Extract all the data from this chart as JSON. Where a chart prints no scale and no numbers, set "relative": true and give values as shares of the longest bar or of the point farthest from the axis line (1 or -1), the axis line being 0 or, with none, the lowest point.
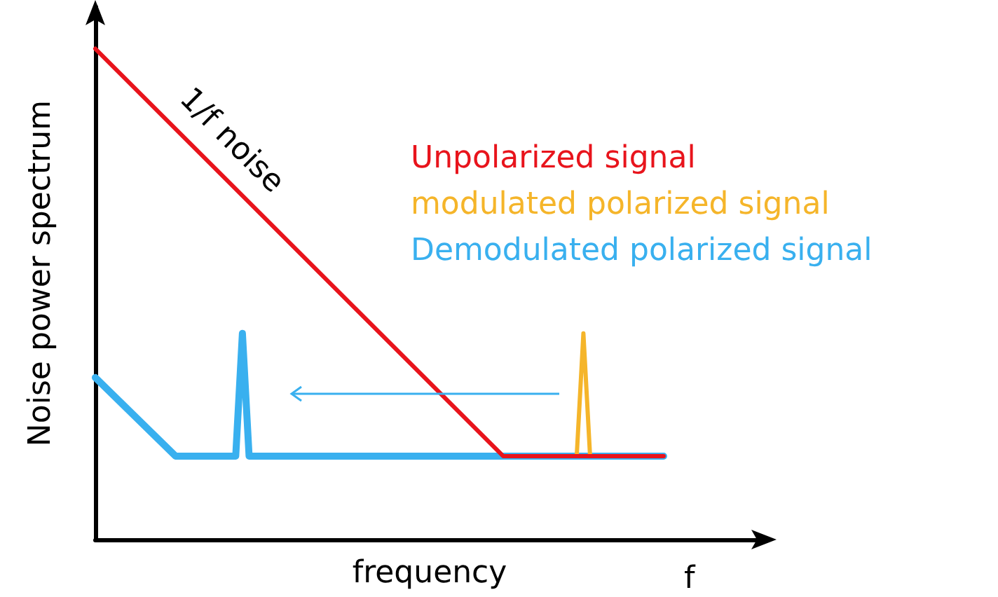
{
  "chart_data": {
    "type": "line",
    "relative": true,
    "xlabel": "frequency",
    "ylabel": "Noise power spectrum",
    "grid": false,
    "marker": "none",
    "line_style": "solid",
    "categories": [
      null,
      null,
      null,
      null,
      null,
      null,
      null,
      null,
      null,
      null,
      null,
      null,
      null,
      null,
      null,
      null,
      null,
      null,
      null,
      null,
      null,
      null,
      null,
      null,
      null,
      null,
      null,
      null,
      null,
      null,
      null,
      null,
      null,
      null,
      null,
      null,
      null,
      null,
      null,
      null,
      null,
      null,
      null,
      null,
      null,
      null,
      null,
      null,
      null,
      null,
      null,
      null,
      null,
      null,
      null,
      null,
      null,
      null,
      null,
      null,
      null,
      null,
      null,
      null,
      null,
      null,
      null,
      null,
      null,
      null,
      null,
      null,
      null,
      null,
      null,
      null,
      null,
      null,
      null,
      null,
      null,
      null,
      null,
      null,
      null,
      null,
      null,
      null,
      null,
      null,
      null,
      null,
      null,
      null,
      null,
      null,
      null,
      null,
      null,
      null,
      null
    ],
    "series": [
      {
        "name": "Unpolarized signal",
        "color": "#e8141c",
        "values": [
          1,
          null,
          null,
          null,
          null,
          null,
          null,
          null,
          null,
          null,
          null,
          null,
          null,
          null,
          null,
          null,
          null,
          null,
          null,
          null,
          null,
          null,
          null,
          null,
          null,
          null,
          null,
          null,
          null,
          null,
          null,
          null,
          null,
          null,
          null,
          null,
          null,
          null,
          null,
          null,
          null,
          null,
          null,
          null,
          null,
          null,
          null,
          null,
          null,
          null,
          null,
          null,
          null,
          null,
          null,
          null,
          null,
          null,
          null,
          null,
          null,
          0.17,
          null,
          null,
          null,
          null,
          null,
          null,
          null,
          null,
          null,
          null,
          null,
          null,
          null,
          null,
          null,
          null,
          null,
          null,
          null,
          null,
          null,
          null,
          null,
          0.17,
          null,
          null,
          null,
          null,
          null,
          null,
          null,
          null,
          null,
          null,
          null,
          null,
          null,
          null,
          null
        ]
      },
      {
        "name": "modulated polarized signal",
        "color": "#f5b52a",
        "values": [
          null,
          null,
          null,
          null,
          null,
          null,
          null,
          null,
          null,
          null,
          null,
          null,
          null,
          null,
          null,
          null,
          null,
          null,
          null,
          null,
          null,
          null,
          null,
          null,
          null,
          null,
          null,
          null,
          null,
          null,
          null,
          null,
          null,
          null,
          null,
          null,
          null,
          null,
          null,
          null,
          null,
          null,
          null,
          null,
          null,
          null,
          null,
          null,
          null,
          null,
          null,
          null,
          null,
          null,
          null,
          null,
          null,
          null,
          null,
          null,
          null,
          null,
          null,
          null,
          null,
          null,
          null,
          null,
          null,
          null,
          null,
          null,
          0.17,
          0.42,
          0.17,
          null,
          null,
          null,
          null,
          null,
          null,
          null,
          null,
          null,
          null,
          null,
          null,
          null,
          null,
          null,
          null,
          null,
          null,
          null,
          null,
          null,
          null,
          null,
          null,
          null,
          null
        ]
      },
      {
        "name": "Demodulated polarized signal",
        "color": "#39b0ef",
        "values": [
          0.33,
          null,
          null,
          null,
          null,
          null,
          null,
          null,
          null,
          null,
          null,
          null,
          0.17,
          null,
          null,
          null,
          null,
          null,
          null,
          null,
          null,
          0.17,
          0.42,
          0.17,
          null,
          null,
          null,
          null,
          null,
          null,
          null,
          null,
          null,
          null,
          null,
          null,
          null,
          null,
          null,
          null,
          null,
          null,
          null,
          null,
          null,
          null,
          null,
          null,
          null,
          null,
          null,
          null,
          null,
          null,
          null,
          null,
          null,
          null,
          null,
          null,
          null,
          null,
          null,
          null,
          null,
          null,
          null,
          null,
          null,
          null,
          null,
          null,
          null,
          null,
          null,
          null,
          null,
          null,
          null,
          null,
          null,
          null,
          null,
          null,
          null,
          0.17,
          null,
          null,
          null,
          null,
          null,
          null,
          null,
          null,
          null,
          null,
          null,
          null,
          null,
          null,
          null
        ]
      }
    ],
    "annotations": [
      "1/f noise",
      "f"
    ]
  }
}
